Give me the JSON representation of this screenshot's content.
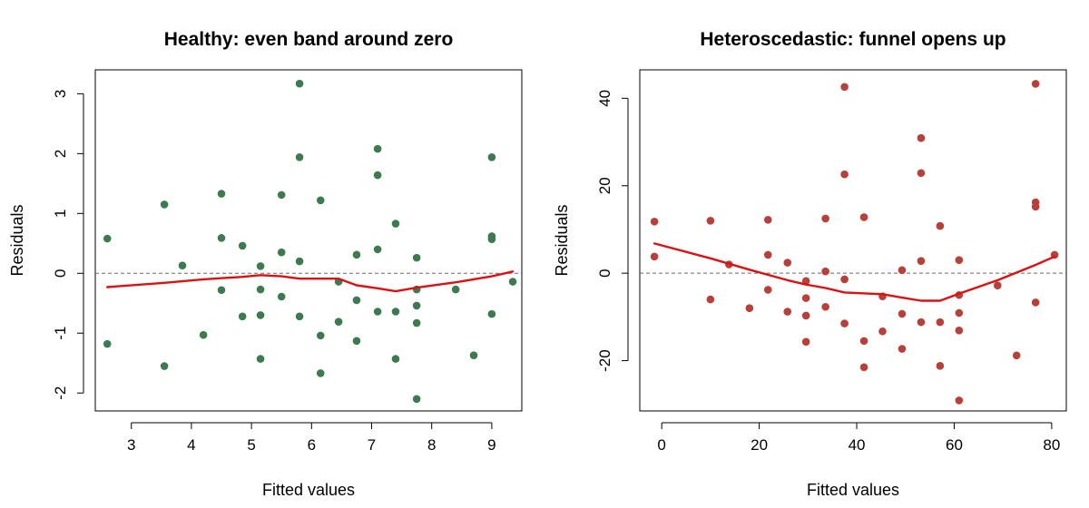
{
  "chart_data": [
    {
      "type": "scatter",
      "title": "Healthy: even band around zero",
      "xlabel": "Fitted values",
      "ylabel": "Residuals",
      "xlim": [
        2.4,
        9.5
      ],
      "ylim": [
        -2.3,
        3.4
      ],
      "xticks": [
        3,
        4,
        5,
        6,
        7,
        8,
        9
      ],
      "yticks": [
        -2,
        -1,
        0,
        1,
        2,
        3
      ],
      "point_color": "#3d7a4f",
      "trend_color": "#dd1111",
      "reference_line": 0,
      "series": [
        {
          "points": [
            {
              "x": 2.6,
              "y": 0.58
            },
            {
              "x": 2.6,
              "y": -1.18
            },
            {
              "x": 3.55,
              "y": 1.15
            },
            {
              "x": 3.55,
              "y": -1.55
            },
            {
              "x": 3.85,
              "y": 0.13
            },
            {
              "x": 4.2,
              "y": -1.03
            },
            {
              "x": 4.5,
              "y": 1.33
            },
            {
              "x": 4.5,
              "y": 0.59
            },
            {
              "x": 4.5,
              "y": -0.28
            },
            {
              "x": 4.85,
              "y": 0.46
            },
            {
              "x": 4.85,
              "y": -0.72
            },
            {
              "x": 5.15,
              "y": 0.12
            },
            {
              "x": 5.15,
              "y": -0.27
            },
            {
              "x": 5.15,
              "y": -0.7
            },
            {
              "x": 5.15,
              "y": -1.43
            },
            {
              "x": 5.5,
              "y": 1.31
            },
            {
              "x": 5.5,
              "y": 0.35
            },
            {
              "x": 5.5,
              "y": -0.39
            },
            {
              "x": 5.8,
              "y": 3.17
            },
            {
              "x": 5.8,
              "y": 1.94
            },
            {
              "x": 5.8,
              "y": 0.2
            },
            {
              "x": 5.8,
              "y": -0.72
            },
            {
              "x": 6.15,
              "y": 1.22
            },
            {
              "x": 6.15,
              "y": -1.04
            },
            {
              "x": 6.15,
              "y": -1.67
            },
            {
              "x": 6.45,
              "y": -0.14
            },
            {
              "x": 6.45,
              "y": -0.81
            },
            {
              "x": 6.75,
              "y": 0.31
            },
            {
              "x": 6.75,
              "y": -0.45
            },
            {
              "x": 6.75,
              "y": -1.13
            },
            {
              "x": 7.1,
              "y": 2.08
            },
            {
              "x": 7.1,
              "y": 1.64
            },
            {
              "x": 7.1,
              "y": 0.4
            },
            {
              "x": 7.1,
              "y": -0.64
            },
            {
              "x": 7.4,
              "y": 0.83
            },
            {
              "x": 7.4,
              "y": -0.64
            },
            {
              "x": 7.4,
              "y": -1.43
            },
            {
              "x": 7.75,
              "y": 0.26
            },
            {
              "x": 7.75,
              "y": -0.27
            },
            {
              "x": 7.75,
              "y": -0.54
            },
            {
              "x": 7.75,
              "y": -0.83
            },
            {
              "x": 7.75,
              "y": -2.1
            },
            {
              "x": 8.4,
              "y": -0.27
            },
            {
              "x": 8.7,
              "y": -1.37
            },
            {
              "x": 9.0,
              "y": 1.94
            },
            {
              "x": 9.0,
              "y": 0.62
            },
            {
              "x": 9.0,
              "y": 0.57
            },
            {
              "x": 9.0,
              "y": -0.68
            },
            {
              "x": 9.35,
              "y": -0.14
            }
          ],
          "trend": [
            {
              "x": 2.6,
              "y": -0.23
            },
            {
              "x": 3.55,
              "y": -0.16
            },
            {
              "x": 4.2,
              "y": -0.1
            },
            {
              "x": 4.85,
              "y": -0.06
            },
            {
              "x": 5.15,
              "y": -0.03
            },
            {
              "x": 5.5,
              "y": -0.05
            },
            {
              "x": 5.8,
              "y": -0.09
            },
            {
              "x": 6.45,
              "y": -0.09
            },
            {
              "x": 6.75,
              "y": -0.2
            },
            {
              "x": 7.1,
              "y": -0.25
            },
            {
              "x": 7.4,
              "y": -0.3
            },
            {
              "x": 7.75,
              "y": -0.24
            },
            {
              "x": 8.4,
              "y": -0.15
            },
            {
              "x": 9.0,
              "y": -0.05
            },
            {
              "x": 9.35,
              "y": 0.03
            }
          ]
        }
      ]
    },
    {
      "type": "scatter",
      "title": "Heteroscedastic: funnel opens up",
      "xlabel": "Fitted values",
      "ylabel": "Residuals",
      "xlim": [
        -4.5,
        83
      ],
      "ylim": [
        -31.5,
        46.5
      ],
      "xticks": [
        0,
        20,
        40,
        60,
        80
      ],
      "yticks": [
        -20,
        0,
        20,
        40
      ],
      "point_color": "#b8403a",
      "trend_color": "#dd1111",
      "reference_line": 0,
      "series": [
        {
          "points": [
            {
              "x": -1.5,
              "y": 11.8
            },
            {
              "x": -1.5,
              "y": 3.8
            },
            {
              "x": 10,
              "y": 12.0
            },
            {
              "x": 10,
              "y": -6.0
            },
            {
              "x": 13.8,
              "y": 2.0
            },
            {
              "x": 18,
              "y": -8.0
            },
            {
              "x": 21.8,
              "y": 12.2
            },
            {
              "x": 21.8,
              "y": 4.2
            },
            {
              "x": 21.8,
              "y": -3.8
            },
            {
              "x": 25.8,
              "y": 2.4
            },
            {
              "x": 25.8,
              "y": -8.8
            },
            {
              "x": 29.6,
              "y": -1.8
            },
            {
              "x": 29.6,
              "y": -5.7
            },
            {
              "x": 29.6,
              "y": -9.7
            },
            {
              "x": 29.6,
              "y": -15.7
            },
            {
              "x": 33.6,
              "y": 12.5
            },
            {
              "x": 33.6,
              "y": 0.4
            },
            {
              "x": 33.6,
              "y": -7.7
            },
            {
              "x": 37.5,
              "y": 42.6
            },
            {
              "x": 37.5,
              "y": 22.6
            },
            {
              "x": 37.5,
              "y": -1.4
            },
            {
              "x": 37.5,
              "y": -11.5
            },
            {
              "x": 41.5,
              "y": 12.8
            },
            {
              "x": 41.5,
              "y": -15.5
            },
            {
              "x": 41.5,
              "y": -21.5
            },
            {
              "x": 45.3,
              "y": -5.3
            },
            {
              "x": 45.3,
              "y": -13.3
            },
            {
              "x": 49.3,
              "y": 0.7
            },
            {
              "x": 49.3,
              "y": -9.3
            },
            {
              "x": 49.3,
              "y": -17.3
            },
            {
              "x": 53.2,
              "y": 30.9
            },
            {
              "x": 53.2,
              "y": 22.9
            },
            {
              "x": 53.2,
              "y": 2.8
            },
            {
              "x": 53.2,
              "y": -11.2
            },
            {
              "x": 57.1,
              "y": 10.8
            },
            {
              "x": 57.1,
              "y": -11.2
            },
            {
              "x": 57.1,
              "y": -21.2
            },
            {
              "x": 61,
              "y": 3.0
            },
            {
              "x": 61,
              "y": -5.0
            },
            {
              "x": 61,
              "y": -9.1
            },
            {
              "x": 61,
              "y": -13.1
            },
            {
              "x": 61,
              "y": -29.1
            },
            {
              "x": 68.9,
              "y": -2.8
            },
            {
              "x": 72.8,
              "y": -18.8
            },
            {
              "x": 76.7,
              "y": 43.3
            },
            {
              "x": 76.7,
              "y": 16.2
            },
            {
              "x": 76.7,
              "y": 15.2
            },
            {
              "x": 76.7,
              "y": -6.7
            },
            {
              "x": 80.6,
              "y": 4.2
            }
          ],
          "trend": [
            {
              "x": -1.5,
              "y": 6.8
            },
            {
              "x": 10,
              "y": 3.4
            },
            {
              "x": 18,
              "y": 0.8
            },
            {
              "x": 25.8,
              "y": -1.6
            },
            {
              "x": 29.6,
              "y": -2.6
            },
            {
              "x": 33.6,
              "y": -3.4
            },
            {
              "x": 37.5,
              "y": -4.4
            },
            {
              "x": 45.3,
              "y": -4.8
            },
            {
              "x": 49.3,
              "y": -5.6
            },
            {
              "x": 53.2,
              "y": -6.3
            },
            {
              "x": 57.1,
              "y": -6.3
            },
            {
              "x": 61,
              "y": -4.7
            },
            {
              "x": 68.9,
              "y": -1.6
            },
            {
              "x": 76.7,
              "y": 1.9
            },
            {
              "x": 80.6,
              "y": 3.8
            }
          ]
        }
      ]
    }
  ]
}
